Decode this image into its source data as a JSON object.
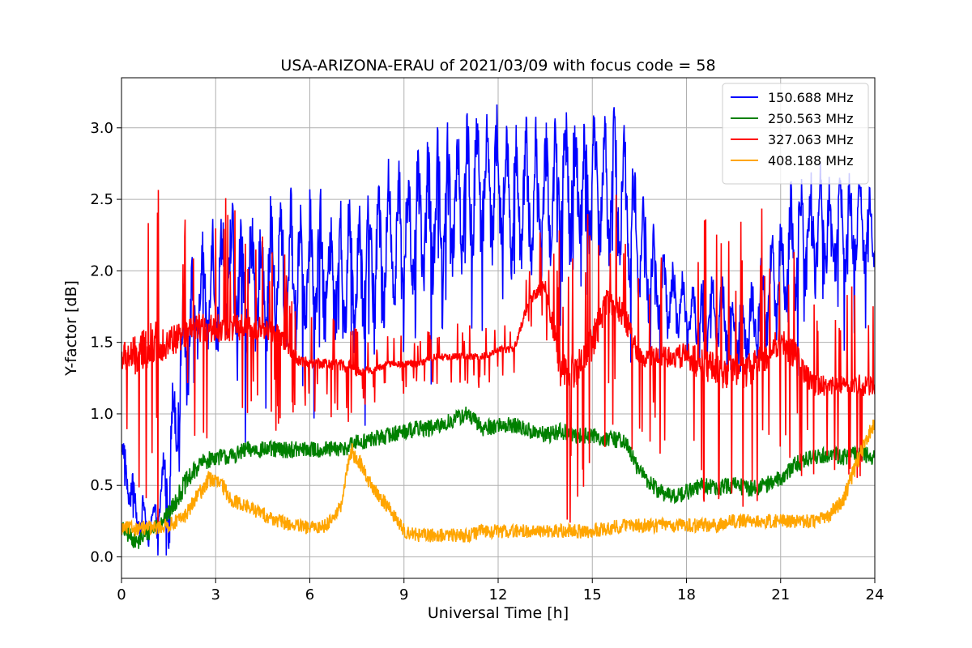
{
  "chart_data": {
    "type": "line",
    "title": "USA-ARIZONA-ERAU of 2021/03/09 with focus code = 58",
    "xlabel": "Universal Time [h]",
    "ylabel": "Y-factor [dB]",
    "xlim": [
      0,
      24
    ],
    "ylim": [
      -0.15,
      3.35
    ],
    "xticks": [
      0,
      3,
      6,
      9,
      12,
      15,
      18,
      21,
      24
    ],
    "xtick_labels": [
      "0",
      "3",
      "6",
      "9",
      "12",
      "15",
      "18",
      "21",
      "24"
    ],
    "yticks": [
      0.0,
      0.5,
      1.0,
      1.5,
      2.0,
      2.5,
      3.0
    ],
    "ytick_labels": [
      "0.0",
      "0.5",
      "1.0",
      "1.5",
      "2.0",
      "2.5",
      "3.0"
    ],
    "grid": true,
    "legend_position": "top-right",
    "series": [
      {
        "name": "150.688 MHz",
        "color": "#0000ff",
        "x": [
          0,
          0.5,
          1,
          1.5,
          2,
          2.5,
          3,
          3.5,
          4,
          4.5,
          5,
          5.5,
          6,
          6.5,
          7,
          7.5,
          8,
          8.5,
          9,
          9.5,
          10,
          10.5,
          11,
          11.5,
          12,
          12.5,
          13,
          13.5,
          14,
          14.5,
          15,
          15.5,
          16,
          16.5,
          17,
          17.5,
          18,
          18.5,
          19,
          19.5,
          20,
          20.5,
          21,
          21.5,
          22,
          22.5,
          23,
          23.5,
          24
        ],
        "base": [
          0.7,
          0.3,
          0.2,
          0.6,
          1.5,
          1.8,
          1.9,
          2.0,
          1.9,
          1.9,
          2.0,
          2.0,
          2.0,
          2.0,
          2.0,
          2.0,
          2.1,
          2.2,
          2.2,
          2.3,
          2.4,
          2.5,
          2.55,
          2.6,
          2.6,
          2.5,
          2.5,
          2.5,
          2.6,
          2.6,
          2.6,
          2.6,
          2.5,
          2.2,
          1.9,
          1.8,
          1.7,
          1.7,
          1.7,
          1.6,
          1.6,
          1.8,
          2.0,
          2.2,
          2.3,
          2.3,
          2.3,
          2.3,
          2.3
        ],
        "amp": [
          0.2,
          0.2,
          0.15,
          0.4,
          0.5,
          0.5,
          0.6,
          0.6,
          0.6,
          0.6,
          0.6,
          0.6,
          0.6,
          0.6,
          0.6,
          0.6,
          0.6,
          0.6,
          0.6,
          0.6,
          0.6,
          0.6,
          0.6,
          0.6,
          0.6,
          0.6,
          0.6,
          0.6,
          0.6,
          0.6,
          0.6,
          0.6,
          0.6,
          0.5,
          0.4,
          0.3,
          0.3,
          0.3,
          0.3,
          0.3,
          0.3,
          0.4,
          0.5,
          0.5,
          0.5,
          0.5,
          0.4,
          0.4,
          0.3
        ]
      },
      {
        "name": "250.563 MHz",
        "color": "#008000",
        "x": [
          0,
          0.5,
          1,
          1.5,
          2,
          2.5,
          3,
          3.5,
          4,
          4.5,
          5,
          5.5,
          6,
          6.5,
          7,
          7.5,
          8,
          8.5,
          9,
          9.5,
          10,
          10.5,
          11,
          11.5,
          12,
          12.5,
          13,
          13.5,
          14,
          14.5,
          15,
          15.5,
          16,
          16.5,
          17,
          17.5,
          18,
          18.5,
          19,
          19.5,
          20,
          20.5,
          21,
          21.5,
          22,
          22.5,
          23,
          23.5,
          24
        ],
        "base": [
          0.2,
          0.1,
          0.2,
          0.3,
          0.5,
          0.65,
          0.7,
          0.7,
          0.75,
          0.75,
          0.75,
          0.75,
          0.75,
          0.75,
          0.75,
          0.8,
          0.82,
          0.85,
          0.88,
          0.9,
          0.9,
          0.95,
          1.0,
          0.9,
          0.92,
          0.92,
          0.88,
          0.85,
          0.88,
          0.85,
          0.85,
          0.82,
          0.82,
          0.6,
          0.48,
          0.42,
          0.45,
          0.5,
          0.48,
          0.5,
          0.48,
          0.5,
          0.55,
          0.65,
          0.7,
          0.72,
          0.7,
          0.72,
          0.7
        ],
        "amp": [
          0.06,
          0.06,
          0.06,
          0.06,
          0.08,
          0.06,
          0.06,
          0.06,
          0.06,
          0.06,
          0.06,
          0.06,
          0.06,
          0.06,
          0.06,
          0.06,
          0.06,
          0.06,
          0.06,
          0.06,
          0.06,
          0.06,
          0.06,
          0.06,
          0.06,
          0.06,
          0.06,
          0.06,
          0.06,
          0.06,
          0.06,
          0.06,
          0.06,
          0.06,
          0.06,
          0.06,
          0.06,
          0.06,
          0.06,
          0.06,
          0.06,
          0.06,
          0.06,
          0.06,
          0.06,
          0.06,
          0.06,
          0.06,
          0.06
        ]
      },
      {
        "name": "327.063 MHz",
        "color": "#ff0000",
        "x": [
          0,
          0.5,
          1,
          1.5,
          2,
          2.5,
          3,
          3.5,
          4,
          4.5,
          5,
          5.5,
          6,
          6.5,
          7,
          7.5,
          8,
          8.5,
          9,
          9.5,
          10,
          10.5,
          11,
          11.5,
          12,
          12.5,
          13,
          13.5,
          14,
          14.5,
          15,
          15.5,
          16,
          16.5,
          17,
          17.5,
          18,
          18.5,
          19,
          19.5,
          20,
          20.5,
          21,
          21.5,
          22,
          22.5,
          23,
          23.5,
          24
        ],
        "base": [
          1.4,
          1.4,
          1.5,
          1.5,
          1.55,
          1.6,
          1.6,
          1.6,
          1.6,
          1.6,
          1.55,
          1.4,
          1.35,
          1.35,
          1.35,
          1.3,
          1.3,
          1.35,
          1.35,
          1.35,
          1.4,
          1.4,
          1.4,
          1.4,
          1.45,
          1.45,
          1.8,
          1.9,
          1.3,
          1.3,
          1.5,
          1.8,
          1.7,
          1.4,
          1.4,
          1.4,
          1.4,
          1.35,
          1.3,
          1.3,
          1.3,
          1.4,
          1.5,
          1.4,
          1.2,
          1.2,
          1.2,
          1.2,
          1.2
        ],
        "amp": [
          0.4,
          0.6,
          0.6,
          0.5,
          0.4,
          0.4,
          0.4,
          0.4,
          0.4,
          0.3,
          0.3,
          0.2,
          0.15,
          0.15,
          0.2,
          0.15,
          0.1,
          0.1,
          0.1,
          0.1,
          0.1,
          0.1,
          0.1,
          0.1,
          0.1,
          0.1,
          0.15,
          0.2,
          0.5,
          0.5,
          0.5,
          0.4,
          0.4,
          0.3,
          0.3,
          0.3,
          0.4,
          0.5,
          0.5,
          0.5,
          0.5,
          0.5,
          0.4,
          0.4,
          0.3,
          0.3,
          0.3,
          0.3,
          0.3
        ]
      },
      {
        "name": "408.188 MHz",
        "color": "#ffa500",
        "x": [
          0,
          0.5,
          1,
          1.5,
          2,
          2.5,
          2.8,
          3.2,
          3.5,
          4,
          4.5,
          5,
          5.5,
          6,
          6.5,
          7,
          7.3,
          7.6,
          8,
          8.5,
          9,
          9.5,
          10,
          10.5,
          11,
          11.5,
          12,
          12.5,
          13,
          13.5,
          14,
          14.5,
          15,
          15.5,
          16,
          16.5,
          17,
          17.5,
          18,
          18.5,
          19,
          19.5,
          20,
          20.5,
          21,
          21.5,
          22,
          22.5,
          23,
          23.5,
          24
        ],
        "base": [
          0.2,
          0.2,
          0.2,
          0.22,
          0.28,
          0.45,
          0.55,
          0.5,
          0.4,
          0.35,
          0.3,
          0.25,
          0.22,
          0.2,
          0.22,
          0.35,
          0.75,
          0.65,
          0.48,
          0.35,
          0.18,
          0.15,
          0.15,
          0.15,
          0.15,
          0.18,
          0.18,
          0.18,
          0.18,
          0.18,
          0.18,
          0.18,
          0.18,
          0.2,
          0.22,
          0.22,
          0.22,
          0.22,
          0.22,
          0.22,
          0.22,
          0.25,
          0.25,
          0.25,
          0.25,
          0.25,
          0.25,
          0.28,
          0.4,
          0.7,
          0.95
        ],
        "amp": [
          0.05,
          0.05,
          0.05,
          0.05,
          0.05,
          0.06,
          0.06,
          0.06,
          0.05,
          0.05,
          0.05,
          0.05,
          0.05,
          0.05,
          0.05,
          0.05,
          0.06,
          0.06,
          0.05,
          0.05,
          0.05,
          0.05,
          0.05,
          0.05,
          0.05,
          0.05,
          0.05,
          0.05,
          0.05,
          0.05,
          0.05,
          0.05,
          0.05,
          0.05,
          0.05,
          0.05,
          0.05,
          0.05,
          0.05,
          0.05,
          0.05,
          0.05,
          0.05,
          0.05,
          0.05,
          0.05,
          0.05,
          0.05,
          0.06,
          0.06,
          0.06
        ]
      }
    ]
  }
}
